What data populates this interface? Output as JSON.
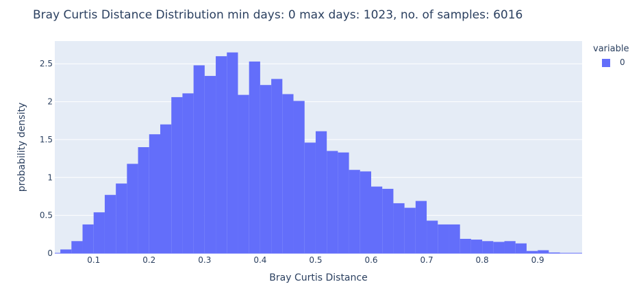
{
  "chart_data": {
    "type": "bar",
    "title": "Bray Curtis Distance Distribution min days: 0 max days: 1023, no. of samples: 6016",
    "xlabel": "Bray Curtis Distance",
    "ylabel": "probability density",
    "xlim": [
      0.03,
      0.98
    ],
    "ylim": [
      0,
      2.8
    ],
    "x_ticks": [
      0.1,
      0.2,
      0.3,
      0.4,
      0.5,
      0.6,
      0.7,
      0.8,
      0.9
    ],
    "x_tick_labels": [
      "0.1",
      "0.2",
      "0.3",
      "0.4",
      "0.5",
      "0.6",
      "0.7",
      "0.8",
      "0.9"
    ],
    "y_ticks": [
      0,
      0.5,
      1,
      1.5,
      2,
      2.5
    ],
    "y_tick_labels": [
      "0",
      "0.5",
      "1",
      "1.5",
      "2",
      "2.5"
    ],
    "bin_start": 0.04,
    "bin_width": 0.02,
    "grid": true,
    "legend_position": "top-right",
    "legend_title": "variable",
    "series": [
      {
        "name": "0",
        "color": "#636efa",
        "values": [
          0.05,
          0.16,
          0.38,
          0.54,
          0.77,
          0.92,
          1.18,
          1.4,
          1.57,
          1.7,
          2.06,
          2.11,
          2.48,
          2.34,
          2.6,
          2.65,
          2.09,
          2.53,
          2.22,
          2.3,
          2.1,
          2.01,
          1.46,
          1.61,
          1.35,
          1.33,
          1.1,
          1.08,
          0.88,
          0.85,
          0.66,
          0.6,
          0.69,
          0.43,
          0.38,
          0.38,
          0.19,
          0.18,
          0.16,
          0.15,
          0.16,
          0.13,
          0.03,
          0.04,
          0.01
        ]
      }
    ]
  }
}
